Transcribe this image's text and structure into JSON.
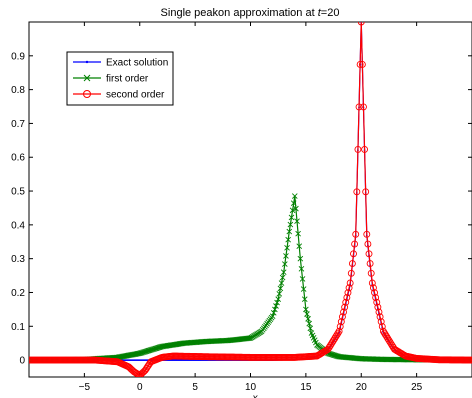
{
  "chart_data": {
    "type": "line",
    "title": "Single peakon approximation at t=20",
    "title_prefix": "Single peakon approximation at ",
    "title_var": "t",
    "title_value": "=20",
    "xlabel": "x",
    "ylabel": "",
    "xlim": [
      -10,
      30
    ],
    "ylim": [
      -0.05,
      1.0
    ],
    "xticks": [
      -5,
      0,
      5,
      10,
      15,
      20,
      25
    ],
    "yticks": [
      0,
      0.1,
      0.2,
      0.3,
      0.4,
      0.5,
      0.6,
      0.7,
      0.8,
      0.9
    ],
    "x_tick_labels": [
      "−5",
      "0",
      "5",
      "10",
      "15",
      "20",
      "25"
    ],
    "y_tick_labels": [
      "0",
      "0.1",
      "0.2",
      "0.3",
      "0.4",
      "0.5",
      "0.6",
      "0.7",
      "0.8",
      "0.9"
    ],
    "grid": false,
    "legend_position": "top-left",
    "series": [
      {
        "name": "Exact solution",
        "color": "#0000ff",
        "marker": "dot",
        "x": [
          -10,
          -5,
          0,
          5,
          10,
          12,
          14,
          15,
          16,
          17,
          18,
          19,
          19.5,
          20,
          20.5,
          21,
          22,
          23,
          24,
          25,
          27,
          30
        ],
        "y": [
          0.0,
          0.0,
          0.0,
          0.0,
          0.0,
          0.0,
          0.002,
          0.004,
          0.011,
          0.03,
          0.082,
          0.223,
          0.368,
          1.0,
          0.368,
          0.223,
          0.082,
          0.03,
          0.011,
          0.004,
          0.001,
          0.0
        ]
      },
      {
        "name": "first order",
        "color": "#008000",
        "marker": "x",
        "x": [
          -10,
          -5,
          -2,
          0,
          2,
          4,
          6,
          8,
          10,
          11,
          12,
          12.5,
          13,
          13.5,
          14,
          14.5,
          15,
          15.5,
          16,
          17,
          18,
          20,
          22,
          25,
          30
        ],
        "y": [
          0.0,
          0.002,
          0.008,
          0.02,
          0.04,
          0.05,
          0.055,
          0.058,
          0.065,
          0.085,
          0.13,
          0.18,
          0.26,
          0.38,
          0.485,
          0.3,
          0.15,
          0.08,
          0.045,
          0.02,
          0.01,
          0.004,
          0.002,
          0.001,
          0.0
        ]
      },
      {
        "name": "second order",
        "color": "#ff0000",
        "marker": "o",
        "x": [
          -10,
          -4,
          -2,
          -1,
          -0.5,
          0,
          0.5,
          1,
          2,
          3,
          6,
          10,
          14,
          16,
          17,
          18,
          19,
          19.5,
          20,
          20.5,
          21,
          22,
          23,
          24,
          25,
          27,
          30
        ],
        "y": [
          0.0,
          0.0,
          -0.005,
          -0.02,
          -0.035,
          -0.045,
          -0.03,
          -0.005,
          0.008,
          0.012,
          0.01,
          0.008,
          0.008,
          0.012,
          0.032,
          0.085,
          0.228,
          0.372,
          1.0,
          0.372,
          0.228,
          0.085,
          0.032,
          0.012,
          0.005,
          0.001,
          0.0
        ]
      }
    ]
  }
}
